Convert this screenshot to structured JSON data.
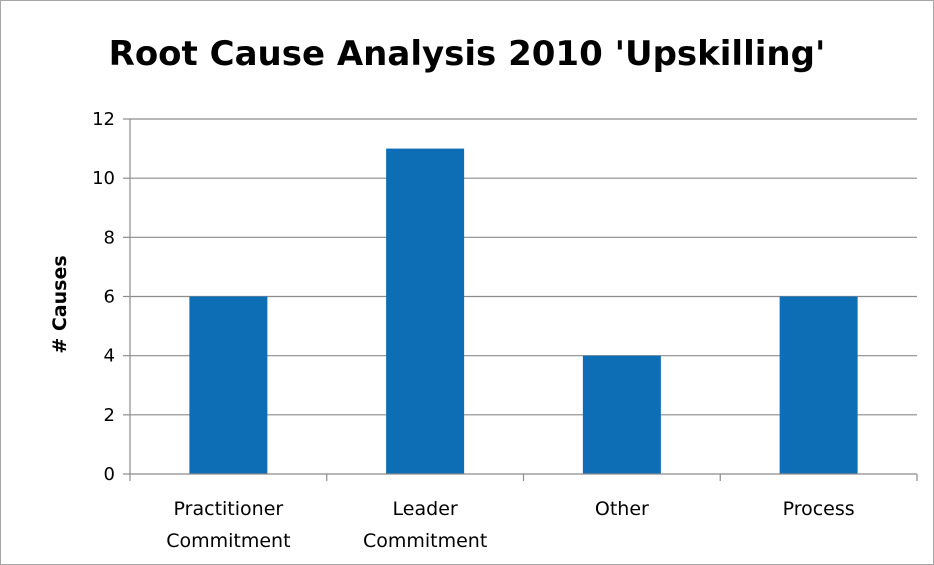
{
  "chart_data": {
    "type": "bar",
    "title": "Root Cause Analysis 2010 'Upskilling'",
    "xlabel": "",
    "ylabel": "# Causes",
    "categories": [
      [
        "Practitioner",
        "Commitment"
      ],
      [
        "Leader",
        "Commitment"
      ],
      [
        "Other"
      ],
      [
        "Process"
      ]
    ],
    "values": [
      6,
      11,
      4,
      6
    ],
    "ylim": [
      0,
      12
    ],
    "yticks": [
      0,
      2,
      4,
      6,
      8,
      10,
      12
    ],
    "grid": true,
    "legend": "none",
    "bar_color": "#0d6eb5",
    "grid_color": "#8c8c8c",
    "axis_color": "#8c8c8c"
  }
}
